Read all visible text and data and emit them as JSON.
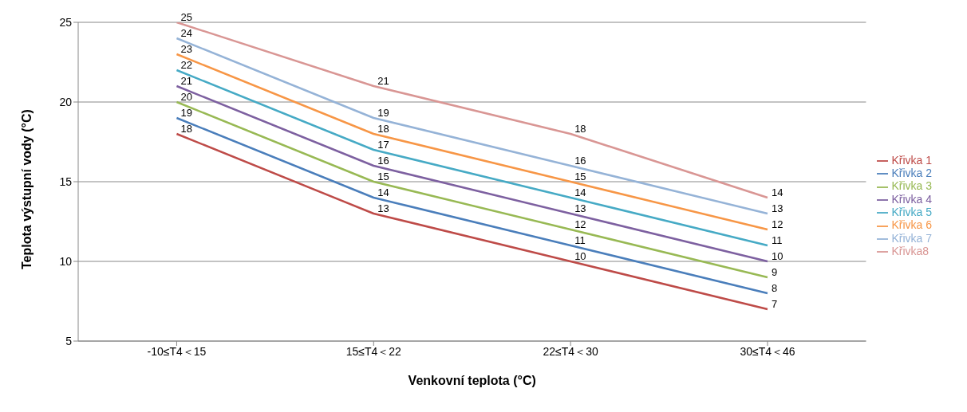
{
  "chart_data": {
    "type": "line",
    "xlabel": "Venkovní teplota (°C)",
    "ylabel": "Teplota výstupní vody (°C)",
    "categories": [
      "-10≤T4＜15",
      "15≤T4＜22",
      "22≤T4＜30",
      "30≤T4＜46"
    ],
    "series": [
      {
        "name": "Křivka 1",
        "color": "#be4b48",
        "values": [
          18,
          13,
          10,
          7
        ]
      },
      {
        "name": "Křivka 2",
        "color": "#4a7ebb",
        "values": [
          19,
          14,
          11,
          8
        ]
      },
      {
        "name": "Křivka 3",
        "color": "#98b954",
        "values": [
          20,
          15,
          12,
          9
        ]
      },
      {
        "name": "Křivka 4",
        "color": "#7d60a0",
        "values": [
          21,
          16,
          13,
          10
        ]
      },
      {
        "name": "Křivka 5",
        "color": "#46aac5",
        "values": [
          22,
          17,
          14,
          11
        ]
      },
      {
        "name": "Křivka 6",
        "color": "#f79646",
        "values": [
          23,
          18,
          15,
          12
        ]
      },
      {
        "name": "Křivka 7",
        "color": "#95b3d7",
        "values": [
          24,
          19,
          16,
          13
        ]
      },
      {
        "name": "Křivka8",
        "color": "#d99694",
        "values": [
          25,
          21,
          18,
          14
        ]
      }
    ],
    "ylim": [
      5,
      25
    ],
    "yticks": [
      5,
      10,
      15,
      20,
      25
    ],
    "grid": "y",
    "legend": "right",
    "marker": "none",
    "line_style": "solid",
    "data_labels": true
  }
}
